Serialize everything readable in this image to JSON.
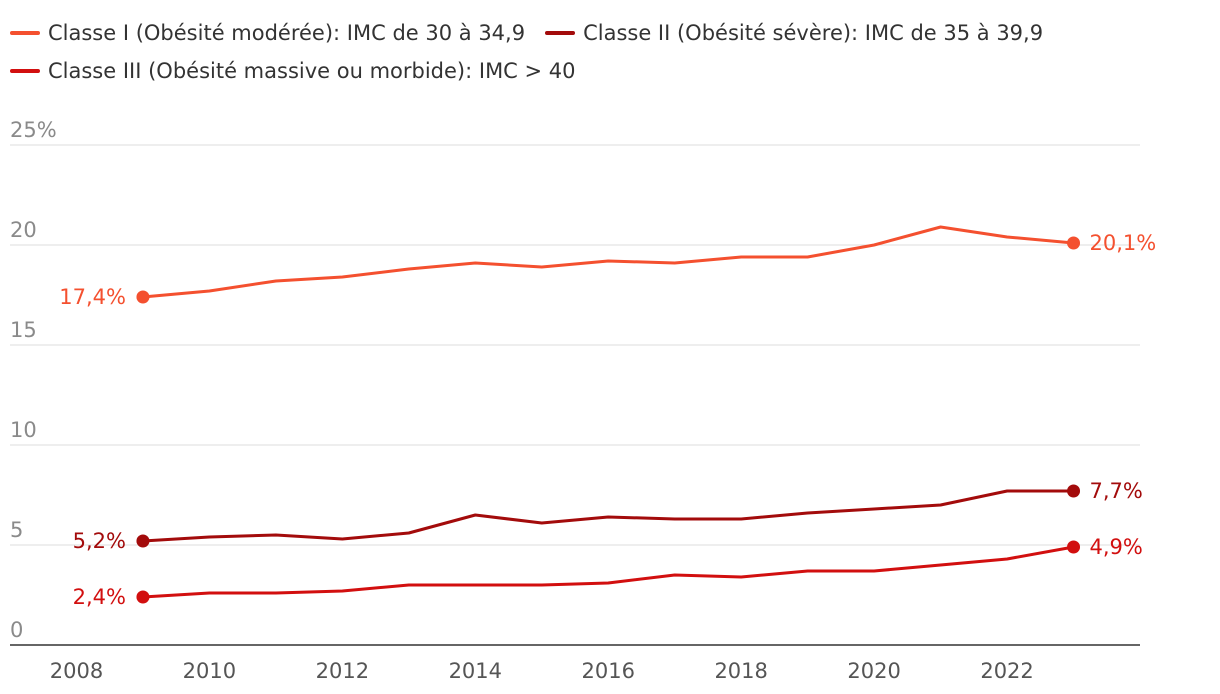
{
  "chart_data": {
    "type": "line",
    "title": "",
    "xlabel": "",
    "ylabel": "",
    "ylim": [
      0,
      25
    ],
    "xlim": [
      2007,
      2024
    ],
    "y_ticks": [
      {
        "value": 0,
        "label": "0"
      },
      {
        "value": 5,
        "label": "5"
      },
      {
        "value": 10,
        "label": "10"
      },
      {
        "value": 15,
        "label": "15"
      },
      {
        "value": 20,
        "label": "20"
      },
      {
        "value": 25,
        "label": "25%"
      }
    ],
    "x_ticks": [
      {
        "value": 2008,
        "label": "2008"
      },
      {
        "value": 2010,
        "label": "2010"
      },
      {
        "value": 2012,
        "label": "2012"
      },
      {
        "value": 2014,
        "label": "2014"
      },
      {
        "value": 2016,
        "label": "2016"
      },
      {
        "value": 2018,
        "label": "2018"
      },
      {
        "value": 2020,
        "label": "2020"
      },
      {
        "value": 2022,
        "label": "2022"
      }
    ],
    "grid": true,
    "legend_position": "top",
    "x": [
      2009,
      2010,
      2011,
      2012,
      2013,
      2014,
      2015,
      2016,
      2017,
      2018,
      2019,
      2020,
      2021,
      2022,
      2023
    ],
    "series": [
      {
        "name": "Classe I (Obésité modérée): IMC de 30 à 34,9",
        "color": "#f4502f",
        "values": [
          17.4,
          17.7,
          18.2,
          18.4,
          18.8,
          19.1,
          18.9,
          19.2,
          19.1,
          19.4,
          19.4,
          20.0,
          20.9,
          20.4,
          20.1
        ],
        "start_label": "17,4%",
        "end_label": "20,1%"
      },
      {
        "name": "Classe II (Obésité sévère): IMC de 35 à 39,9",
        "color": "#a30b0b",
        "values": [
          5.2,
          5.4,
          5.5,
          5.3,
          5.6,
          6.5,
          6.1,
          6.4,
          6.3,
          6.3,
          6.6,
          6.8,
          7.0,
          7.7,
          7.7
        ],
        "start_label": "5,2%",
        "end_label": "7,7%"
      },
      {
        "name": "Classe III (Obésité massive ou morbide): IMC > 40",
        "color": "#d20f0f",
        "values": [
          2.4,
          2.6,
          2.6,
          2.7,
          3.0,
          3.0,
          3.0,
          3.1,
          3.5,
          3.4,
          3.7,
          3.7,
          4.0,
          4.3,
          4.9
        ],
        "start_label": "2,4%",
        "end_label": "4,9%"
      }
    ]
  }
}
